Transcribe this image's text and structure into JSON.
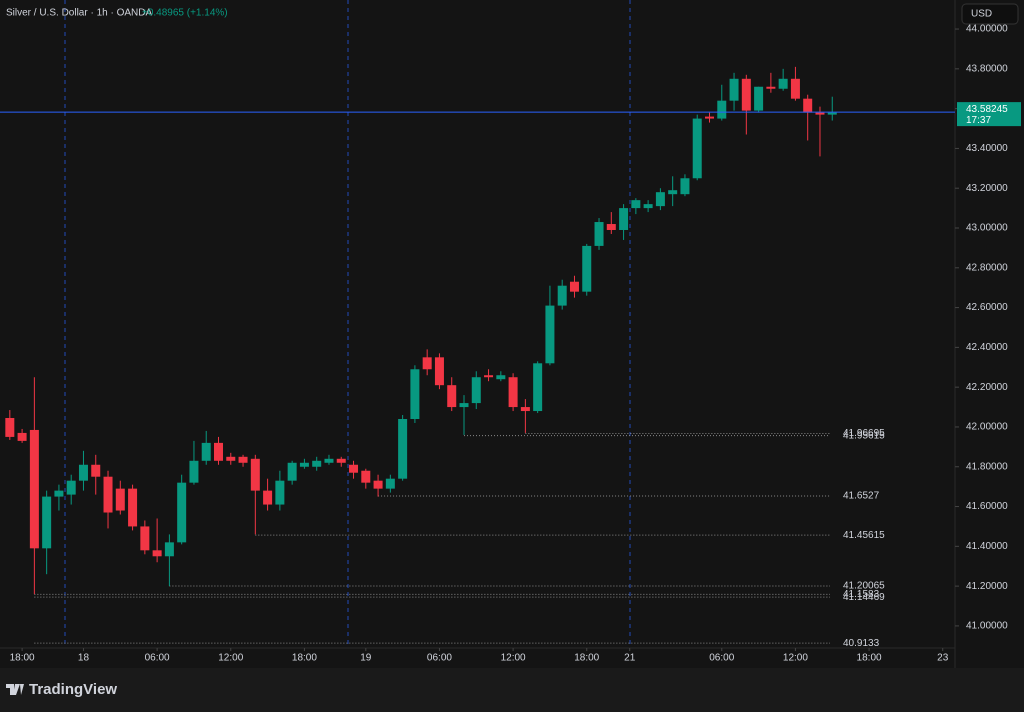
{
  "header": {
    "symbol": "Silver / U.S. Dollar · 1h · OANDA",
    "change": "+0.48965 (+1.14%)",
    "currency": "USD",
    "brand": "TradingView"
  },
  "chart_data": {
    "type": "candlestick",
    "open": [
      42.045,
      41.97,
      41.985,
      41.39,
      41.65,
      41.66,
      41.73,
      41.81,
      41.75,
      41.69,
      41.69,
      41.5,
      41.38,
      41.35,
      41.42,
      41.72,
      41.83,
      41.92,
      41.85,
      41.85,
      41.84,
      41.68,
      41.61,
      41.73,
      41.8,
      41.8,
      41.82,
      41.84,
      41.81,
      41.78,
      41.73,
      41.69,
      41.74,
      42.04,
      42.35,
      42.35,
      42.21,
      42.1,
      42.12,
      42.26,
      42.24,
      42.25,
      42.1,
      42.08,
      42.32,
      42.61,
      42.73,
      42.68,
      42.91,
      43.02,
      42.99,
      43.1,
      43.1,
      43.11,
      43.17,
      43.17,
      43.25,
      43.56,
      43.55,
      43.64,
      43.75,
      43.59,
      43.71,
      43.7,
      43.75,
      43.65,
      43.58,
      43.57
    ],
    "high": [
      42.085,
      41.99,
      42.25,
      41.68,
      41.71,
      41.76,
      41.88,
      41.86,
      41.78,
      41.73,
      41.71,
      41.53,
      41.54,
      41.46,
      41.76,
      41.93,
      41.98,
      41.95,
      41.87,
      41.86,
      41.86,
      41.74,
      41.78,
      41.83,
      41.84,
      41.85,
      41.86,
      41.85,
      41.83,
      41.79,
      41.76,
      41.76,
      42.06,
      42.31,
      42.39,
      42.37,
      42.25,
      42.16,
      42.28,
      42.29,
      42.28,
      42.27,
      42.14,
      42.33,
      42.71,
      42.74,
      42.76,
      42.92,
      43.05,
      43.08,
      43.12,
      43.15,
      43.14,
      43.2,
      43.26,
      43.27,
      43.57,
      43.58,
      43.72,
      43.78,
      43.77,
      43.71,
      43.78,
      43.8,
      43.81,
      43.67,
      43.61,
      43.66
    ],
    "low": [
      41.935,
      41.92,
      41.16,
      41.26,
      41.58,
      41.61,
      41.68,
      41.66,
      41.49,
      41.56,
      41.48,
      41.36,
      41.32,
      41.2,
      41.41,
      41.71,
      41.81,
      41.81,
      41.81,
      41.8,
      41.46,
      41.58,
      41.58,
      41.71,
      41.79,
      41.78,
      41.81,
      41.8,
      41.74,
      41.69,
      41.65,
      41.67,
      41.73,
      42.02,
      42.26,
      42.19,
      42.08,
      41.96,
      42.09,
      42.23,
      42.23,
      42.08,
      41.97,
      42.07,
      42.31,
      42.59,
      42.65,
      42.66,
      42.89,
      42.97,
      42.94,
      43.07,
      43.08,
      43.09,
      43.11,
      43.16,
      43.24,
      43.53,
      43.54,
      43.59,
      43.47,
      43.58,
      43.68,
      43.69,
      43.64,
      43.44,
      43.36,
      43.54
    ],
    "close": [
      41.95,
      41.93,
      41.39,
      41.65,
      41.68,
      41.73,
      41.81,
      41.75,
      41.57,
      41.58,
      41.5,
      41.38,
      41.35,
      41.42,
      41.72,
      41.83,
      41.92,
      41.83,
      41.83,
      41.82,
      41.68,
      41.61,
      41.73,
      41.82,
      41.82,
      41.83,
      41.84,
      41.82,
      41.77,
      41.72,
      41.69,
      41.74,
      42.04,
      42.29,
      42.29,
      42.21,
      42.1,
      42.12,
      42.25,
      42.25,
      42.26,
      42.1,
      42.08,
      42.32,
      42.61,
      42.71,
      42.68,
      42.91,
      43.03,
      42.99,
      43.1,
      43.14,
      43.12,
      43.18,
      43.19,
      43.25,
      43.55,
      43.55,
      43.64,
      43.75,
      43.59,
      43.71,
      43.7,
      43.75,
      43.65,
      43.58,
      43.57,
      43.58
    ],
    "up_color": "#089981",
    "down_color": "#f23645",
    "xlim": [
      -0.8,
      77
    ],
    "xticks": [
      {
        "value": 1,
        "label": "18:00"
      },
      {
        "value": 6,
        "label": "18"
      },
      {
        "value": 12,
        "label": "06:00"
      },
      {
        "value": 18,
        "label": "12:00"
      },
      {
        "value": 24,
        "label": "18:00"
      },
      {
        "value": 29,
        "label": "19"
      },
      {
        "value": 35,
        "label": "06:00"
      },
      {
        "value": 41,
        "label": "12:00"
      },
      {
        "value": 47,
        "label": "18:00"
      },
      {
        "value": 50.5,
        "label": "21"
      },
      {
        "value": 58,
        "label": "06:00"
      },
      {
        "value": 64,
        "label": "12:00"
      },
      {
        "value": 70,
        "label": "18:00"
      },
      {
        "value": 76,
        "label": "23"
      }
    ],
    "ylim": [
      40.889,
      44.146
    ],
    "yticks": [
      {
        "value": 44.0,
        "label": "44.00000"
      },
      {
        "value": 43.8,
        "label": "43.80000"
      },
      {
        "value": 43.6,
        "label": "43.60000"
      },
      {
        "value": 43.4,
        "label": "43.40000"
      },
      {
        "value": 43.2,
        "label": "43.20000"
      },
      {
        "value": 43.0,
        "label": "43.00000"
      },
      {
        "value": 42.8,
        "label": "42.80000"
      },
      {
        "value": 42.6,
        "label": "42.60000"
      },
      {
        "value": 42.4,
        "label": "42.40000"
      },
      {
        "value": 42.2,
        "label": "42.20000"
      },
      {
        "value": 42.0,
        "label": "42.00000"
      },
      {
        "value": 41.8,
        "label": "41.80000"
      },
      {
        "value": 41.6,
        "label": "41.60000"
      },
      {
        "value": 41.4,
        "label": "41.40000"
      },
      {
        "value": 41.2,
        "label": "41.20000"
      },
      {
        "value": 41.0,
        "label": "41.00000"
      }
    ],
    "levels": [
      41.96695,
      41.95615,
      41.6527,
      41.45615,
      41.20065,
      41.1583,
      41.14469,
      40.9133
    ],
    "last_price": 43.58245,
    "countdown": "17:37",
    "grid": false
  }
}
